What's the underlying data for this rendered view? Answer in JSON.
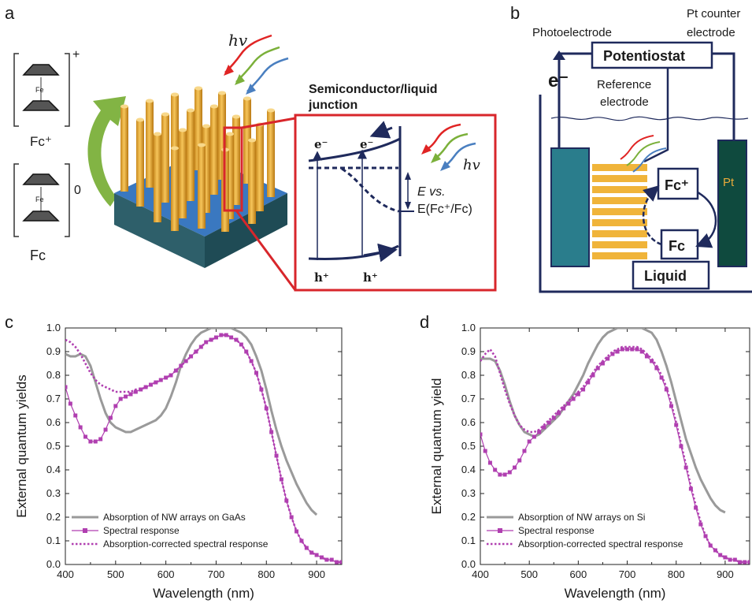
{
  "panels": {
    "a": {
      "label": "a",
      "fc_plus_label": "Fc⁺",
      "fc_label": "Fc",
      "charge_plus": "+",
      "charge_zero": "0",
      "fe": "Fe",
      "hv": "hv",
      "junction_title_1": "Semiconductor/liquid",
      "junction_title_2": "junction",
      "electron": "e⁻",
      "hole": "h⁺",
      "e_vs": "E vs.",
      "e_ref": "E(Fc⁺/Fc)"
    },
    "b": {
      "label": "b",
      "photoelectrode": "Photoelectrode",
      "pt_counter_1": "Pt counter",
      "pt_counter_2": "electrode",
      "potentiostat": "Potentiostat",
      "electron": "e⁻",
      "reference_1": "Reference",
      "reference_2": "electrode",
      "fc_plus": "Fc⁺",
      "fc": "Fc",
      "pt": "Pt",
      "liquid": "Liquid"
    }
  },
  "colors": {
    "absorption": "#9a9a9a",
    "spectral": "#b03fb0",
    "navy": "#1f2a5c",
    "nanowire": "#e8a93a",
    "substrate": "#3a78c0",
    "red_frame": "#d8262b",
    "arrow_green": "#7bb03a"
  },
  "chart_data": [
    {
      "type": "line",
      "panel": "c",
      "xlabel": "Wavelength (nm)",
      "ylabel": "External quantum yields",
      "xlim": [
        400,
        950
      ],
      "ylim": [
        0,
        1.0
      ],
      "xticks": [
        400,
        500,
        600,
        700,
        800,
        900
      ],
      "yticks": [
        0.0,
        0.1,
        0.2,
        0.3,
        0.4,
        0.5,
        0.6,
        0.7,
        0.8,
        0.9,
        1.0
      ],
      "legend_position": "bottom-left",
      "series": [
        {
          "name": "Absorption of NW arrays on GaAs",
          "style": "solid",
          "x": [
            400,
            410,
            420,
            430,
            440,
            450,
            460,
            470,
            480,
            490,
            500,
            510,
            520,
            530,
            540,
            550,
            560,
            570,
            580,
            590,
            600,
            610,
            620,
            630,
            640,
            650,
            660,
            670,
            680,
            690,
            700,
            710,
            720,
            730,
            740,
            750,
            760,
            770,
            780,
            790,
            800,
            810,
            820,
            830,
            840,
            850,
            860,
            870,
            880,
            890,
            900
          ],
          "y": [
            0.89,
            0.88,
            0.88,
            0.89,
            0.88,
            0.84,
            0.77,
            0.7,
            0.64,
            0.6,
            0.58,
            0.57,
            0.56,
            0.56,
            0.57,
            0.58,
            0.59,
            0.6,
            0.61,
            0.63,
            0.66,
            0.71,
            0.77,
            0.84,
            0.89,
            0.93,
            0.96,
            0.98,
            0.99,
            1.0,
            1.0,
            1.0,
            1.0,
            1.0,
            0.99,
            0.98,
            0.96,
            0.93,
            0.88,
            0.82,
            0.74,
            0.65,
            0.57,
            0.5,
            0.44,
            0.39,
            0.34,
            0.3,
            0.26,
            0.23,
            0.21
          ]
        },
        {
          "name": "Spectral response",
          "style": "line-square",
          "x": [
            400,
            410,
            420,
            430,
            440,
            450,
            460,
            470,
            480,
            490,
            500,
            510,
            520,
            530,
            540,
            550,
            560,
            570,
            580,
            590,
            600,
            610,
            620,
            630,
            640,
            650,
            660,
            670,
            680,
            690,
            700,
            710,
            720,
            730,
            740,
            750,
            760,
            770,
            780,
            790,
            800,
            810,
            820,
            830,
            840,
            850,
            860,
            870,
            880,
            890,
            900,
            910,
            920,
            930,
            940,
            950
          ],
          "y": [
            0.75,
            0.68,
            0.63,
            0.58,
            0.54,
            0.52,
            0.52,
            0.53,
            0.57,
            0.62,
            0.67,
            0.7,
            0.71,
            0.72,
            0.73,
            0.74,
            0.75,
            0.76,
            0.77,
            0.78,
            0.79,
            0.8,
            0.82,
            0.84,
            0.86,
            0.88,
            0.9,
            0.92,
            0.94,
            0.95,
            0.96,
            0.97,
            0.97,
            0.96,
            0.95,
            0.93,
            0.9,
            0.86,
            0.81,
            0.74,
            0.66,
            0.56,
            0.46,
            0.36,
            0.27,
            0.2,
            0.14,
            0.1,
            0.07,
            0.05,
            0.04,
            0.03,
            0.02,
            0.02,
            0.01,
            0.01
          ]
        },
        {
          "name": "Absorption-corrected spectral response",
          "style": "dotted",
          "x": [
            400,
            410,
            420,
            430,
            440,
            450,
            460,
            470,
            480,
            490,
            500,
            510,
            520,
            530,
            540,
            550,
            560,
            570,
            580,
            590,
            600,
            610,
            620,
            630,
            640,
            650,
            660,
            670,
            680,
            690,
            700,
            710,
            720,
            730,
            740,
            750,
            760,
            770,
            780,
            790,
            800,
            810,
            820,
            830,
            840,
            850,
            860,
            870,
            880,
            890,
            900,
            910,
            920,
            930,
            940,
            950
          ],
          "y": [
            0.95,
            0.94,
            0.92,
            0.89,
            0.85,
            0.81,
            0.78,
            0.76,
            0.75,
            0.74,
            0.73,
            0.73,
            0.73,
            0.73,
            0.74,
            0.74,
            0.75,
            0.76,
            0.77,
            0.78,
            0.79,
            0.8,
            0.82,
            0.84,
            0.86,
            0.88,
            0.9,
            0.92,
            0.94,
            0.95,
            0.96,
            0.97,
            0.97,
            0.96,
            0.95,
            0.93,
            0.9,
            0.86,
            0.81,
            0.74,
            0.66,
            0.56,
            0.46,
            0.36,
            0.27,
            0.2,
            0.14,
            0.1,
            0.07,
            0.05,
            0.04,
            0.03,
            0.02,
            0.02,
            0.01,
            0.01
          ]
        }
      ]
    },
    {
      "type": "line",
      "panel": "d",
      "xlabel": "Wavelength (nm)",
      "ylabel": "External quantum yield",
      "xlim": [
        400,
        950
      ],
      "ylim": [
        0,
        1.0
      ],
      "xticks": [
        400,
        500,
        600,
        700,
        800,
        900
      ],
      "yticks": [
        0.0,
        0.1,
        0.2,
        0.3,
        0.4,
        0.5,
        0.6,
        0.7,
        0.8,
        0.9,
        1.0
      ],
      "legend_position": "bottom-left",
      "series": [
        {
          "name": "Absorption of NW arrays on Si",
          "style": "solid",
          "x": [
            400,
            410,
            420,
            430,
            440,
            450,
            460,
            470,
            480,
            490,
            500,
            510,
            520,
            530,
            540,
            550,
            560,
            570,
            580,
            590,
            600,
            610,
            620,
            630,
            640,
            650,
            660,
            670,
            680,
            690,
            700,
            710,
            720,
            730,
            740,
            750,
            760,
            770,
            780,
            790,
            800,
            810,
            820,
            830,
            840,
            850,
            860,
            870,
            880,
            890,
            900
          ],
          "y": [
            0.87,
            0.87,
            0.87,
            0.86,
            0.82,
            0.76,
            0.69,
            0.63,
            0.59,
            0.56,
            0.55,
            0.54,
            0.55,
            0.57,
            0.59,
            0.61,
            0.63,
            0.66,
            0.69,
            0.72,
            0.76,
            0.8,
            0.85,
            0.89,
            0.93,
            0.96,
            0.98,
            0.99,
            1.0,
            1.0,
            1.0,
            1.0,
            1.0,
            1.0,
            0.99,
            0.98,
            0.95,
            0.9,
            0.84,
            0.77,
            0.69,
            0.61,
            0.53,
            0.47,
            0.41,
            0.36,
            0.32,
            0.28,
            0.25,
            0.23,
            0.22
          ]
        },
        {
          "name": "Spectral response",
          "style": "line-square",
          "x": [
            400,
            410,
            420,
            430,
            440,
            450,
            460,
            470,
            480,
            490,
            500,
            510,
            520,
            530,
            540,
            550,
            560,
            570,
            580,
            590,
            600,
            610,
            620,
            630,
            640,
            650,
            660,
            670,
            680,
            690,
            700,
            710,
            720,
            730,
            740,
            750,
            760,
            770,
            780,
            790,
            800,
            810,
            820,
            830,
            840,
            850,
            860,
            870,
            880,
            890,
            900,
            910,
            920,
            930,
            940,
            950
          ],
          "y": [
            0.55,
            0.48,
            0.43,
            0.4,
            0.38,
            0.38,
            0.39,
            0.41,
            0.44,
            0.48,
            0.52,
            0.54,
            0.56,
            0.58,
            0.6,
            0.62,
            0.64,
            0.66,
            0.68,
            0.7,
            0.72,
            0.74,
            0.77,
            0.8,
            0.83,
            0.85,
            0.87,
            0.89,
            0.9,
            0.91,
            0.91,
            0.91,
            0.91,
            0.9,
            0.88,
            0.86,
            0.83,
            0.79,
            0.74,
            0.67,
            0.59,
            0.5,
            0.41,
            0.32,
            0.24,
            0.17,
            0.12,
            0.08,
            0.06,
            0.04,
            0.03,
            0.02,
            0.02,
            0.01,
            0.01,
            0.01
          ]
        },
        {
          "name": "Absorption-corrected spectral response",
          "style": "dotted",
          "x": [
            400,
            410,
            420,
            430,
            440,
            450,
            460,
            470,
            480,
            490,
            500,
            510,
            520,
            530,
            540,
            550,
            560,
            570,
            580,
            590,
            600,
            610,
            620,
            630,
            640,
            650,
            660,
            670,
            680,
            690,
            700,
            710,
            720,
            730,
            740,
            750,
            760,
            770,
            780,
            790,
            800,
            810,
            820,
            830,
            840,
            850,
            860,
            870,
            880,
            890,
            900,
            910,
            920,
            930,
            940,
            950
          ],
          "y": [
            0.86,
            0.89,
            0.91,
            0.88,
            0.81,
            0.74,
            0.68,
            0.63,
            0.59,
            0.57,
            0.56,
            0.56,
            0.57,
            0.59,
            0.61,
            0.63,
            0.65,
            0.67,
            0.69,
            0.71,
            0.73,
            0.75,
            0.78,
            0.81,
            0.84,
            0.86,
            0.88,
            0.9,
            0.91,
            0.92,
            0.92,
            0.92,
            0.92,
            0.91,
            0.89,
            0.87,
            0.84,
            0.8,
            0.75,
            0.68,
            0.6,
            0.51,
            0.42,
            0.33,
            0.25,
            0.18,
            0.12,
            0.08,
            0.06,
            0.04,
            0.03,
            0.02,
            0.02,
            0.01,
            0.01,
            0.01
          ]
        }
      ]
    }
  ]
}
